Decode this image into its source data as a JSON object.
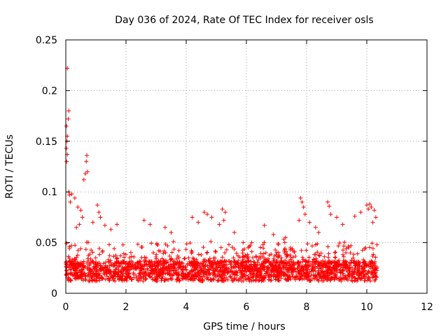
{
  "chart_data": {
    "type": "scatter",
    "title": "Day 036 of 2024, Rate Of TEC Index for receiver osls",
    "xlabel": "GPS time / hours",
    "ylabel": "ROTI / TECUs",
    "xlim": [
      0,
      12
    ],
    "ylim": [
      0,
      0.25
    ],
    "x_ticks": [
      0,
      2,
      4,
      6,
      8,
      10,
      12
    ],
    "x_tick_labels": [
      "0",
      "2",
      "4",
      "6",
      "8",
      "10",
      "12"
    ],
    "y_ticks": [
      0,
      0.05,
      0.1,
      0.15,
      0.2,
      0.25
    ],
    "y_tick_labels": [
      "0",
      "0.05",
      "0.1",
      "0.15",
      "0.2",
      "0.25"
    ],
    "grid": true,
    "marker": "+",
    "color": "#ff0000",
    "series": [
      {
        "name": "ROTI",
        "points": [
          [
            0.05,
            0.222
          ],
          [
            0.1,
            0.18
          ],
          [
            0.08,
            0.172
          ],
          [
            0.02,
            0.165
          ],
          [
            0.05,
            0.155
          ],
          [
            0.04,
            0.15
          ],
          [
            0.02,
            0.143
          ],
          [
            0.05,
            0.137
          ],
          [
            0.03,
            0.13
          ],
          [
            0.1,
            0.1
          ],
          [
            0.12,
            0.097
          ],
          [
            0.15,
            0.09
          ],
          [
            0.2,
            0.098
          ],
          [
            0.3,
            0.094
          ],
          [
            0.4,
            0.085
          ],
          [
            0.5,
            0.082
          ],
          [
            0.6,
            0.112
          ],
          [
            0.65,
            0.118
          ],
          [
            0.7,
            0.136
          ],
          [
            0.68,
            0.13
          ],
          [
            0.72,
            0.12
          ],
          [
            0.55,
            0.075
          ],
          [
            0.45,
            0.068
          ],
          [
            0.35,
            0.065
          ],
          [
            1.05,
            0.087
          ],
          [
            1.1,
            0.08
          ],
          [
            1.15,
            0.075
          ],
          [
            0.9,
            0.07
          ],
          [
            1.3,
            0.067
          ],
          [
            1.5,
            0.063
          ],
          [
            1.7,
            0.068
          ],
          [
            2.6,
            0.072
          ],
          [
            2.8,
            0.068
          ],
          [
            3.3,
            0.065
          ],
          [
            3.5,
            0.06
          ],
          [
            4.2,
            0.075
          ],
          [
            4.4,
            0.07
          ],
          [
            4.6,
            0.08
          ],
          [
            4.7,
            0.078
          ],
          [
            4.85,
            0.075
          ],
          [
            5.2,
            0.083
          ],
          [
            5.3,
            0.08
          ],
          [
            5.25,
            0.072
          ],
          [
            5.1,
            0.068
          ],
          [
            5.6,
            0.06
          ],
          [
            6.6,
            0.067
          ],
          [
            6.9,
            0.058
          ],
          [
            7.3,
            0.055
          ],
          [
            7.8,
            0.094
          ],
          [
            7.85,
            0.09
          ],
          [
            7.9,
            0.085
          ],
          [
            7.95,
            0.078
          ],
          [
            7.75,
            0.072
          ],
          [
            8.1,
            0.07
          ],
          [
            8.3,
            0.065
          ],
          [
            8.4,
            0.06
          ],
          [
            8.7,
            0.09
          ],
          [
            8.75,
            0.086
          ],
          [
            8.8,
            0.078
          ],
          [
            9.0,
            0.075
          ],
          [
            9.2,
            0.068
          ],
          [
            9.6,
            0.076
          ],
          [
            9.8,
            0.08
          ],
          [
            10.0,
            0.087
          ],
          [
            10.05,
            0.083
          ],
          [
            10.1,
            0.088
          ],
          [
            10.15,
            0.085
          ],
          [
            10.2,
            0.07
          ],
          [
            10.25,
            0.082
          ],
          [
            10.3,
            0.075
          ]
        ]
      }
    ]
  }
}
